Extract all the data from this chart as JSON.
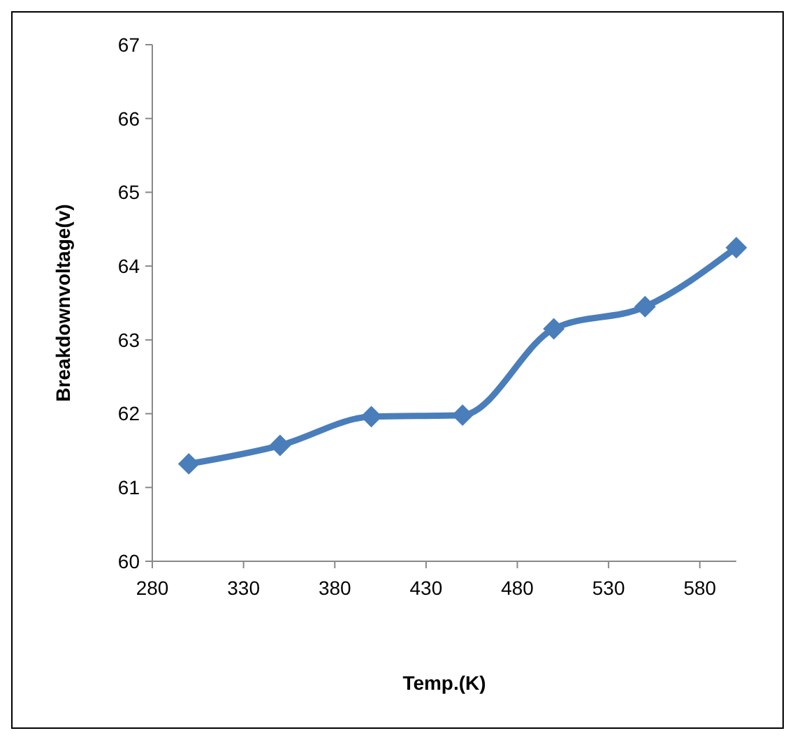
{
  "chart_data": {
    "type": "line",
    "xlabel": "Temp.(K)",
    "ylabel": "Breakdownvoltage(v)",
    "x": [
      300,
      350,
      400,
      450,
      500,
      550,
      600
    ],
    "series": [
      {
        "color": "#4a7ebb",
        "values": [
          61.32,
          61.57,
          61.96,
          61.98,
          63.15,
          63.45,
          64.25
        ]
      }
    ],
    "xlim": [
      280,
      600
    ],
    "xticks": [
      280,
      330,
      380,
      430,
      480,
      530,
      580
    ],
    "ylim": [
      60,
      67
    ],
    "yticks": [
      60,
      61,
      62,
      63,
      64,
      65,
      66,
      67
    ],
    "marker": "diamond",
    "line_style": "solid"
  }
}
